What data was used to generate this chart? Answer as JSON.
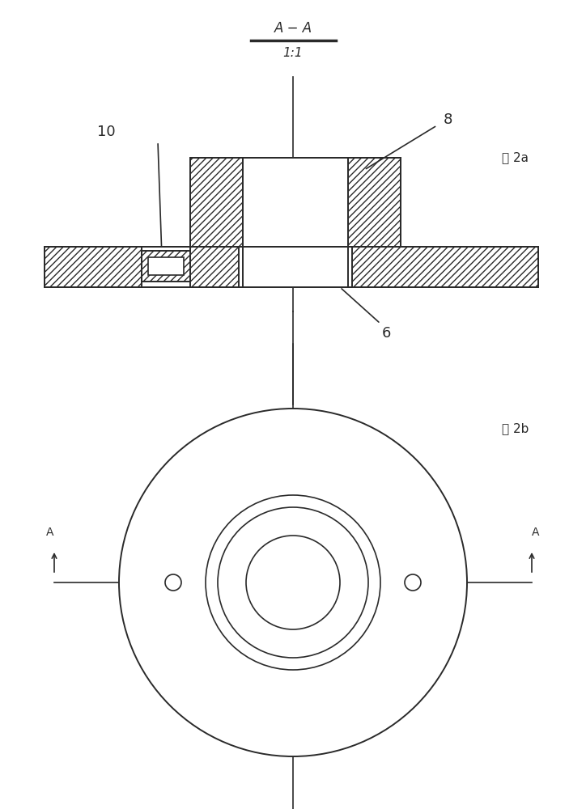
{
  "bg_color": "#ffffff",
  "line_color": "#333333",
  "fig2a_label": "图 2a",
  "fig2b_label": "图 2b",
  "label_8": "8",
  "label_10": "10",
  "label_6": "6"
}
